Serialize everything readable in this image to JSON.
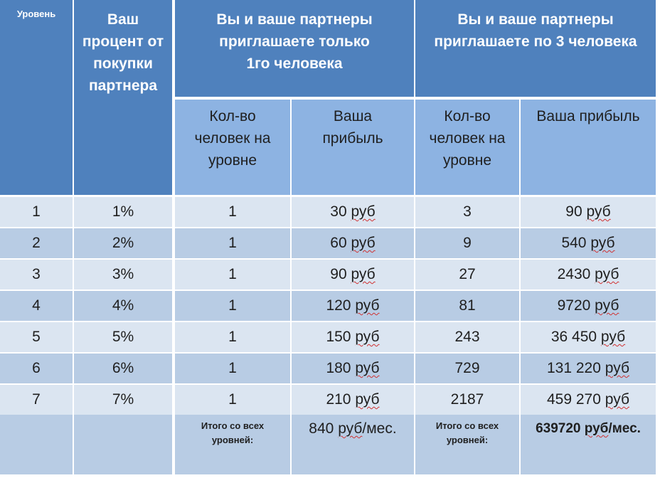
{
  "header": {
    "level": "Уровень",
    "percent": "Ваш процент от покупки партнера",
    "group1": "Вы и ваше партнеры приглашаете только 1го человека",
    "group2": "Вы и ваше партнеры приглашаете по 3 человека",
    "count1": "Кол-во человек на уровне",
    "profit1": "Ваша прибыль",
    "count2": "Кол-во человек на уровне",
    "profit2": "Ваша прибыль"
  },
  "rows": [
    {
      "level": "1",
      "percent": "1%",
      "count1": "1",
      "profit1_num": "30",
      "count2": "3",
      "profit2_num": "90"
    },
    {
      "level": "2",
      "percent": "2%",
      "count1": "1",
      "profit1_num": "60",
      "count2": "9",
      "profit2_num": "540"
    },
    {
      "level": "3",
      "percent": "3%",
      "count1": "1",
      "profit1_num": "90",
      "count2": "27",
      "profit2_num": "2430"
    },
    {
      "level": "4",
      "percent": "4%",
      "count1": "1",
      "profit1_num": "120",
      "count2": "81",
      "profit2_num": "9720"
    },
    {
      "level": "5",
      "percent": "5%",
      "count1": "1",
      "profit1_num": "150",
      "count2": "243",
      "profit2_num": "36 450"
    },
    {
      "level": "6",
      "percent": "6%",
      "count1": "1",
      "profit1_num": "180",
      "count2": "729",
      "profit2_num": "131 220"
    },
    {
      "level": "7",
      "percent": "7%",
      "count1": "1",
      "profit1_num": "210",
      "count2": "2187",
      "profit2_num": "459 270"
    }
  ],
  "currency": "руб",
  "totals": {
    "label1": "Итого со всех уровней:",
    "value1_num": "840",
    "value1_unit": "руб",
    "value1_suffix": "/мес.",
    "label2": "Итого со всех уровней:",
    "value2_num": "639720",
    "value2_unit": "руб",
    "value2_suffix": "/мес."
  }
}
